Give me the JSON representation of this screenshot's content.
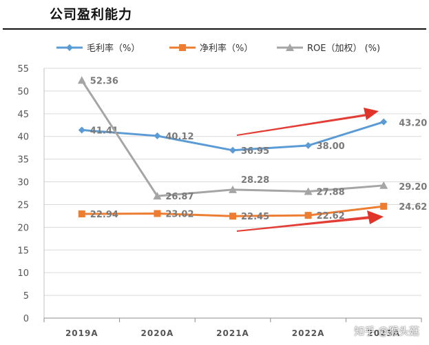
{
  "title": "公司盈利能力",
  "watermark": "知乎 @猴头菇",
  "colors": {
    "gross": "#5b9bd5",
    "net": "#ed7d31",
    "roe": "#a5a5a5",
    "arrow": "#e0342a",
    "grid": "#d9d9d9"
  },
  "chart_data": {
    "type": "line",
    "categories": [
      "2019A",
      "2020A",
      "2021A",
      "2022A",
      "2023A"
    ],
    "ylim": [
      0,
      55
    ],
    "yticks": [
      0,
      5,
      10,
      15,
      20,
      25,
      30,
      35,
      40,
      45,
      50,
      55
    ],
    "series": [
      {
        "name": "毛利率（%）",
        "marker": "diamond",
        "color": "#5b9bd5",
        "values": [
          41.41,
          40.12,
          36.95,
          38.0,
          43.2
        ],
        "labels": [
          "41.41",
          "40.12",
          "36.95",
          "38.00",
          "43.20"
        ]
      },
      {
        "name": "净利率（%）",
        "marker": "square",
        "color": "#ed7d31",
        "values": [
          22.94,
          23.02,
          22.45,
          22.62,
          24.62
        ],
        "labels": [
          "22.94",
          "23.02",
          "22.45",
          "22.62",
          "24.62"
        ]
      },
      {
        "name": "ROE（加权）  (%)",
        "marker": "triangle",
        "color": "#a5a5a5",
        "values": [
          52.36,
          26.87,
          28.28,
          27.88,
          29.2
        ],
        "labels": [
          "52.36",
          "26.87",
          "28.28",
          "27.88",
          "29.20"
        ]
      }
    ],
    "grid": "horizontal",
    "legend": "top"
  }
}
